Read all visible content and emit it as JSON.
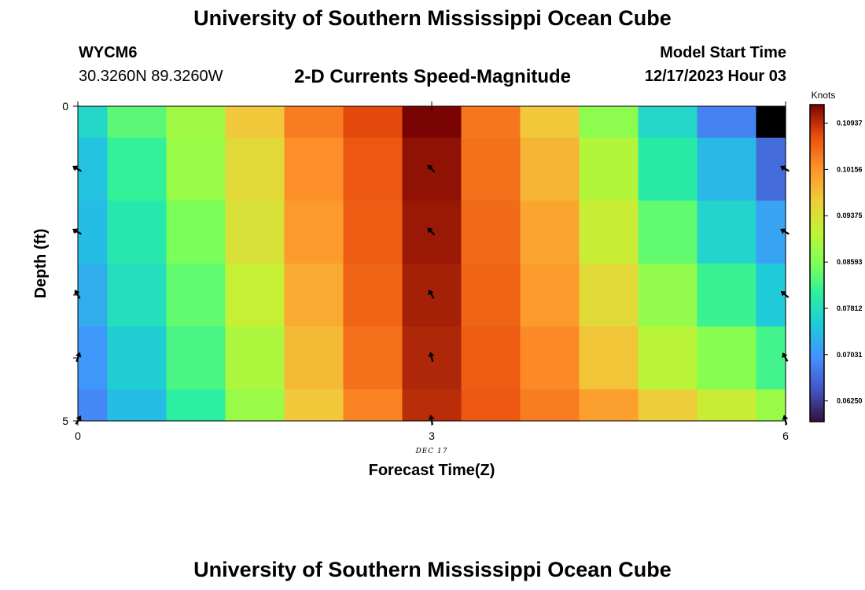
{
  "header": {
    "title": "University of Southern Mississippi Ocean Cube",
    "station": "WYCM6",
    "coords": "30.3260N  89.3260W",
    "subtitle": "2-D Currents Speed-Magnitude",
    "model_start_label": "Model Start Time",
    "model_start_value": "12/17/2023 Hour 03"
  },
  "footer": {
    "title": "University of Southern Mississippi Ocean Cube"
  },
  "chart_data": {
    "type": "heatmap",
    "title": "2-D Currents Speed-Magnitude",
    "xlabel": "Forecast Time(Z)",
    "ylabel": "Depth (ft)",
    "x_date_label": "DEC 17",
    "x_ticks": [
      "0",
      "3",
      "6"
    ],
    "y_ticks": [
      "0",
      "5"
    ],
    "xlim": [
      0,
      6
    ],
    "ylim": [
      0,
      5
    ],
    "colorbar": {
      "title": "Knots",
      "min": 0.059,
      "max": 0.1125,
      "ticks": [
        "0.06250",
        "0.07031",
        "0.07812",
        "0.08593",
        "0.09375",
        "0.10156",
        "0.10937"
      ],
      "tick_values": [
        0.0625,
        0.07031,
        0.07812,
        0.08593,
        0.09375,
        0.10156,
        0.10937
      ]
    },
    "time_columns": [
      0,
      0.5,
      1,
      1.5,
      2,
      2.5,
      3,
      3.5,
      4,
      4.5,
      5,
      5.5,
      6
    ],
    "depth_rows": [
      0,
      1,
      2,
      3,
      4,
      5
    ],
    "values": [
      [
        0.077,
        0.0835,
        0.0885,
        0.0965,
        0.1035,
        0.1075,
        0.1125,
        0.104,
        0.0965,
        0.087,
        0.077,
        0.0685,
        0.054
      ],
      [
        0.0745,
        0.081,
        0.088,
        0.0945,
        0.102,
        0.1065,
        0.1115,
        0.1045,
        0.0985,
        0.09,
        0.08,
        0.0735,
        0.0665
      ],
      [
        0.074,
        0.0795,
        0.0855,
        0.0935,
        0.101,
        0.106,
        0.111,
        0.105,
        0.1,
        0.092,
        0.084,
        0.0765,
        0.0715
      ],
      [
        0.0725,
        0.078,
        0.084,
        0.0915,
        0.0995,
        0.1055,
        0.1105,
        0.1055,
        0.101,
        0.0945,
        0.0875,
        0.0815,
        0.0755
      ],
      [
        0.0705,
        0.076,
        0.0825,
        0.0895,
        0.098,
        0.1045,
        0.11,
        0.106,
        0.1025,
        0.097,
        0.0905,
        0.0865,
        0.082
      ],
      [
        0.069,
        0.074,
        0.0805,
        0.088,
        0.0965,
        0.103,
        0.1095,
        0.1065,
        0.1035,
        0.1005,
        0.096,
        0.092,
        0.088
      ]
    ],
    "vectors": [
      {
        "time": 0,
        "depth": 1,
        "angle_deg": 300
      },
      {
        "time": 0,
        "depth": 2,
        "angle_deg": 300
      },
      {
        "time": 0,
        "depth": 3,
        "angle_deg": 330
      },
      {
        "time": 0,
        "depth": 4,
        "angle_deg": 20
      },
      {
        "time": 0,
        "depth": 5,
        "angle_deg": 30
      },
      {
        "time": 3,
        "depth": 1,
        "angle_deg": 315
      },
      {
        "time": 3,
        "depth": 2,
        "angle_deg": 315
      },
      {
        "time": 3,
        "depth": 3,
        "angle_deg": 330
      },
      {
        "time": 3,
        "depth": 4,
        "angle_deg": 345
      },
      {
        "time": 3,
        "depth": 5,
        "angle_deg": 350
      },
      {
        "time": 6,
        "depth": 1,
        "angle_deg": 300
      },
      {
        "time": 6,
        "depth": 2,
        "angle_deg": 300
      },
      {
        "time": 6,
        "depth": 3,
        "angle_deg": 310
      },
      {
        "time": 6,
        "depth": 4,
        "angle_deg": 330
      },
      {
        "time": 6,
        "depth": 5,
        "angle_deg": 345
      }
    ]
  }
}
